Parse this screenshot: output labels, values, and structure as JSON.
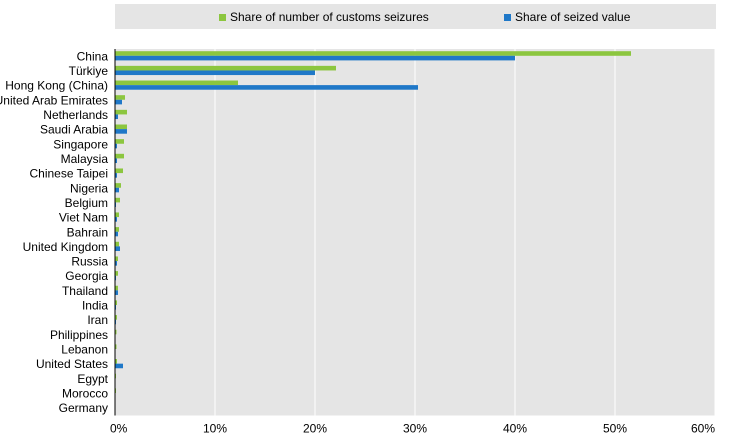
{
  "chart_data": {
    "type": "bar",
    "orientation": "horizontal",
    "categories": [
      "China",
      "Türkiye",
      "Hong Kong (China)",
      "United Arab Emirates",
      "Netherlands",
      "Saudi Arabia",
      "Singapore",
      "Malaysia",
      "Chinese Taipei",
      "Nigeria",
      "Belgium",
      "Viet Nam",
      "Bahrain",
      "United Kingdom",
      "Russia",
      "Georgia",
      "Thailand",
      "India",
      "Iran",
      "Philippines",
      "Lebanon",
      "United States",
      "Egypt",
      "Morocco",
      "Germany"
    ],
    "series": [
      {
        "name": "Share of number of customs seizures",
        "color": "#8cc63f",
        "values": [
          51.6,
          22.1,
          12.3,
          1.0,
          1.2,
          1.2,
          0.9,
          0.9,
          0.8,
          0.6,
          0.5,
          0.4,
          0.4,
          0.4,
          0.3,
          0.3,
          0.3,
          0.2,
          0.2,
          0.15,
          0.15,
          0.2,
          0.1,
          0.1,
          0.05
        ]
      },
      {
        "name": "Share of seized value",
        "color": "#1f78c8",
        "values": [
          40.0,
          20.0,
          30.3,
          0.7,
          0.3,
          1.2,
          0.2,
          0.2,
          0.2,
          0.4,
          0.1,
          0.2,
          0.3,
          0.5,
          0.2,
          0.1,
          0.3,
          0.1,
          0.1,
          0.05,
          0.05,
          0.8,
          0.05,
          0.05,
          0.05
        ]
      }
    ],
    "xlim": [
      0,
      60
    ],
    "xticks": [
      0,
      10,
      20,
      30,
      40,
      50,
      60
    ],
    "tick_format": "percent",
    "grid": true,
    "legend_position": "top"
  }
}
